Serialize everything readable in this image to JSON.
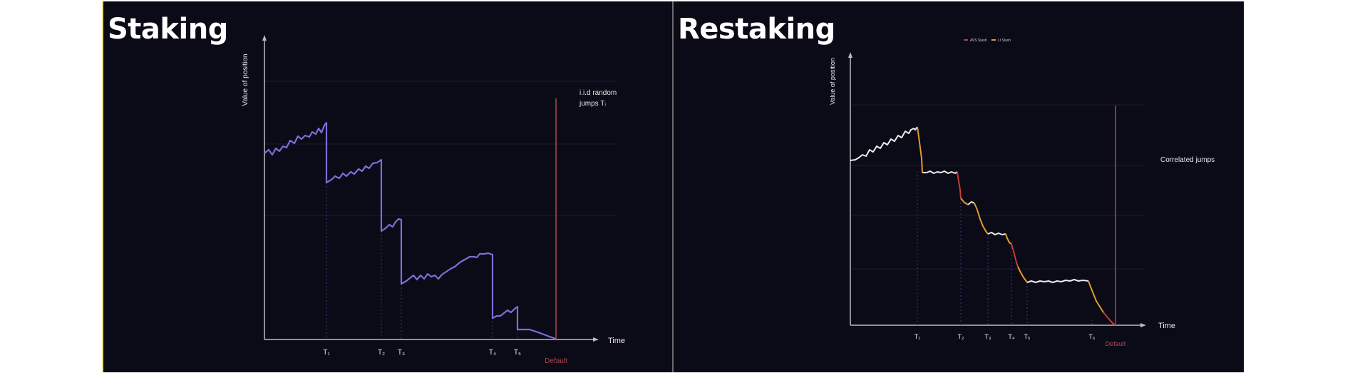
{
  "staking": {
    "title": "Staking",
    "y_axis_label": "Value of position",
    "x_axis_label": "Time",
    "annotation_line1": "i.i.d random",
    "annotation_line2": "jumps Tᵢ",
    "default_label": "Default",
    "tick_labels": [
      "T₁",
      "T₂",
      "T₃",
      "T₄",
      "T₅"
    ],
    "line_color": "#7b6fd6",
    "default_color": "#b0484f"
  },
  "restaking": {
    "title": "Restaking",
    "legend": [
      {
        "label": "AVS Slash",
        "color": "#c83a3a"
      },
      {
        "label": "LI Slash",
        "color": "#e39a2b"
      }
    ],
    "y_axis_label": "Value of position",
    "x_axis_label": "Time",
    "annotation": "Correlated jumps",
    "default_label": "Default",
    "tick_labels": [
      "T₁",
      "T₂",
      "T₃",
      "T₄",
      "T₅",
      "T₆"
    ],
    "line_color": "#ececec",
    "default_color": "#b0484f"
  }
}
